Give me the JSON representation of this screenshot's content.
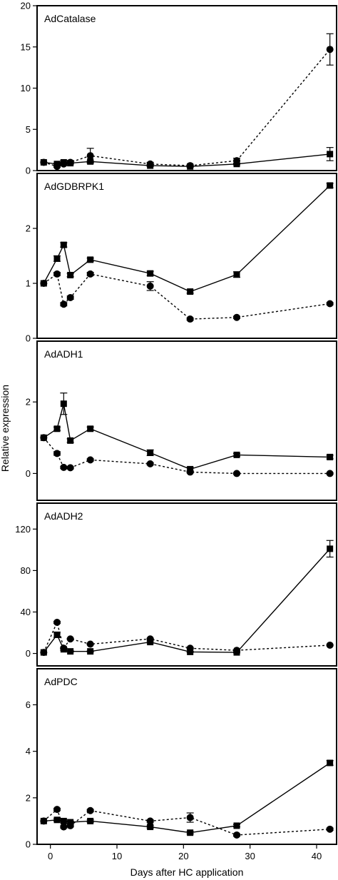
{
  "figure": {
    "ylabel": "Relative expression",
    "xlabel": "Days after HC application",
    "x_ticks": [
      0,
      10,
      20,
      30,
      40
    ],
    "x_range": [
      -2,
      43
    ]
  },
  "chart_data": [
    {
      "type": "line",
      "title": "AdCatalase",
      "ylim": [
        0,
        20
      ],
      "y_ticks": [
        0,
        5,
        10,
        15,
        20
      ],
      "series": [
        {
          "marker": "square",
          "line": "solid",
          "x": [
            -1,
            1,
            2,
            3,
            6,
            15,
            21,
            28,
            42
          ],
          "y": [
            1.0,
            0.8,
            1.0,
            0.9,
            1.1,
            0.6,
            0.5,
            0.8,
            2.0
          ],
          "err": [
            0.0,
            0.1,
            0.2,
            0.1,
            0.1,
            0.1,
            0.1,
            0.1,
            0.8
          ]
        },
        {
          "marker": "circle",
          "line": "dotted",
          "x": [
            -1,
            1,
            2,
            3,
            6,
            15,
            21,
            28,
            42
          ],
          "y": [
            1.0,
            0.5,
            0.8,
            1.0,
            1.8,
            0.8,
            0.6,
            1.2,
            14.7
          ],
          "err": [
            0.0,
            0.1,
            0.2,
            0.2,
            0.9,
            0.2,
            0.1,
            0.3,
            1.9
          ]
        }
      ]
    },
    {
      "type": "line",
      "title": "AdGDBRPK1",
      "ylim": [
        0,
        3
      ],
      "y_ticks": [
        0,
        1,
        2
      ],
      "series": [
        {
          "marker": "square",
          "line": "solid",
          "x": [
            -1,
            1,
            2,
            3,
            6,
            15,
            21,
            28,
            42
          ],
          "y": [
            1.0,
            1.45,
            1.7,
            1.15,
            1.43,
            1.18,
            0.85,
            1.16,
            2.78
          ],
          "err": [
            0.0,
            0.05,
            0.04,
            0.03,
            0.03,
            0.04,
            0.03,
            0.05,
            0.04
          ]
        },
        {
          "marker": "circle",
          "line": "dotted",
          "x": [
            -1,
            1,
            2,
            3,
            6,
            15,
            21,
            28,
            42
          ],
          "y": [
            1.0,
            1.17,
            0.62,
            0.74,
            1.17,
            0.95,
            0.35,
            0.38,
            0.63
          ],
          "err": [
            0.0,
            0.03,
            0.03,
            0.03,
            0.03,
            0.08,
            0.02,
            0.02,
            0.02
          ]
        }
      ]
    },
    {
      "type": "line",
      "title": "AdADH1",
      "ylim": [
        -0.75,
        3.7
      ],
      "y_ticks": [
        0,
        2
      ],
      "series": [
        {
          "marker": "square",
          "line": "solid",
          "x": [
            -1,
            1,
            2,
            3,
            6,
            15,
            21,
            28,
            42
          ],
          "y": [
            1.0,
            1.25,
            1.95,
            0.92,
            1.25,
            0.58,
            0.12,
            0.52,
            0.46
          ],
          "err": [
            0.0,
            0.05,
            0.3,
            0.05,
            0.05,
            0.08,
            0.05,
            0.04,
            0.05
          ]
        },
        {
          "marker": "circle",
          "line": "dotted",
          "x": [
            -1,
            1,
            2,
            3,
            6,
            15,
            21,
            28,
            42
          ],
          "y": [
            1.0,
            0.56,
            0.17,
            0.16,
            0.38,
            0.27,
            0.04,
            0.0,
            0.0
          ],
          "err": [
            0.0,
            0.05,
            0.03,
            0.03,
            0.03,
            0.03,
            0.02,
            0.02,
            0.02
          ]
        }
      ]
    },
    {
      "type": "line",
      "title": "AdADH2",
      "ylim": [
        -12,
        145
      ],
      "y_ticks": [
        0,
        40,
        80,
        120
      ],
      "series": [
        {
          "marker": "square",
          "line": "solid",
          "x": [
            -1,
            1,
            2,
            3,
            6,
            15,
            21,
            28,
            42
          ],
          "y": [
            1.0,
            18.0,
            4.0,
            2.0,
            2.0,
            11.0,
            1.5,
            1.0,
            101.0
          ],
          "err": [
            0.0,
            2.5,
            1.0,
            0.5,
            0.5,
            1.0,
            0.5,
            0.5,
            8.0
          ]
        },
        {
          "marker": "circle",
          "line": "dotted",
          "x": [
            -1,
            1,
            2,
            3,
            6,
            15,
            21,
            28,
            42
          ],
          "y": [
            1.0,
            30.0,
            5.0,
            14.0,
            9.0,
            14.0,
            5.0,
            3.0,
            8.0
          ],
          "err": [
            0.0,
            1.0,
            0.5,
            0.5,
            0.5,
            0.5,
            0.5,
            0.5,
            0.5
          ]
        }
      ]
    },
    {
      "type": "line",
      "title": "AdPDC",
      "ylim": [
        0,
        7.55
      ],
      "y_ticks": [
        0,
        2,
        4,
        6
      ],
      "series": [
        {
          "marker": "square",
          "line": "solid",
          "x": [
            -1,
            1,
            2,
            3,
            6,
            15,
            21,
            28,
            42
          ],
          "y": [
            1.0,
            1.05,
            1.0,
            0.95,
            1.0,
            0.75,
            0.5,
            0.8,
            3.5
          ],
          "err": [
            0.0,
            0.05,
            0.05,
            0.05,
            0.05,
            0.05,
            0.05,
            0.05,
            0.1
          ]
        },
        {
          "marker": "circle",
          "line": "dotted",
          "x": [
            -1,
            1,
            2,
            3,
            6,
            15,
            21,
            28,
            42
          ],
          "y": [
            1.0,
            1.5,
            0.75,
            0.8,
            1.45,
            1.0,
            1.15,
            0.4,
            0.65
          ],
          "err": [
            0.0,
            0.05,
            0.05,
            0.05,
            0.05,
            0.05,
            0.2,
            0.05,
            0.05
          ]
        }
      ]
    }
  ]
}
